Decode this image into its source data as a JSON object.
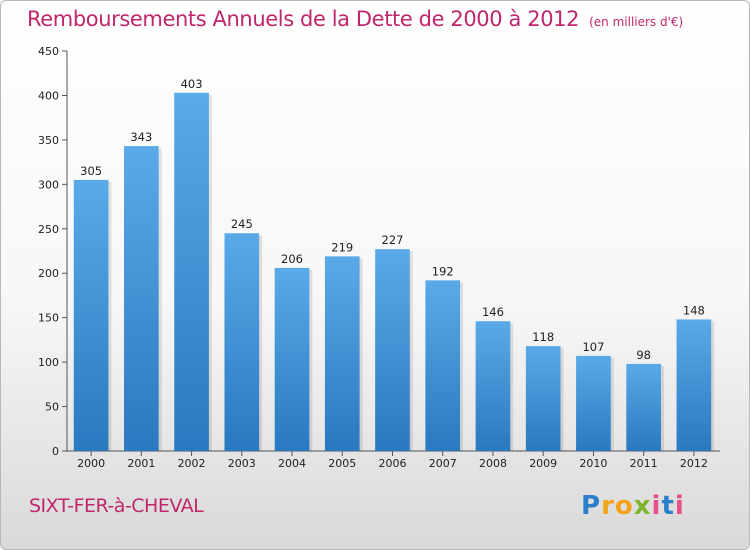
{
  "chart_data": {
    "type": "bar",
    "title": "Remboursements Annuels de la Dette de 2000 à 2012",
    "subtitle": "(en milliers d'€)",
    "categories": [
      "2000",
      "2001",
      "2002",
      "2003",
      "2004",
      "2005",
      "2006",
      "2007",
      "2008",
      "2009",
      "2010",
      "2011",
      "2012"
    ],
    "values": [
      305,
      343,
      403,
      245,
      206,
      219,
      227,
      192,
      146,
      118,
      107,
      98,
      148
    ],
    "xlabel": "",
    "ylabel": "",
    "ylim": [
      0,
      450
    ],
    "yticks": [
      0,
      50,
      100,
      150,
      200,
      250,
      300,
      350,
      400,
      450
    ],
    "grid": false,
    "bar_color_top": "#5aaae8",
    "bar_color_bottom": "#2a78bf"
  },
  "footer": {
    "commune": "SIXT-FER-à-CHEVAL",
    "brand_letters": [
      "P",
      "r",
      "o",
      "x",
      "i",
      "t",
      "i"
    ]
  }
}
